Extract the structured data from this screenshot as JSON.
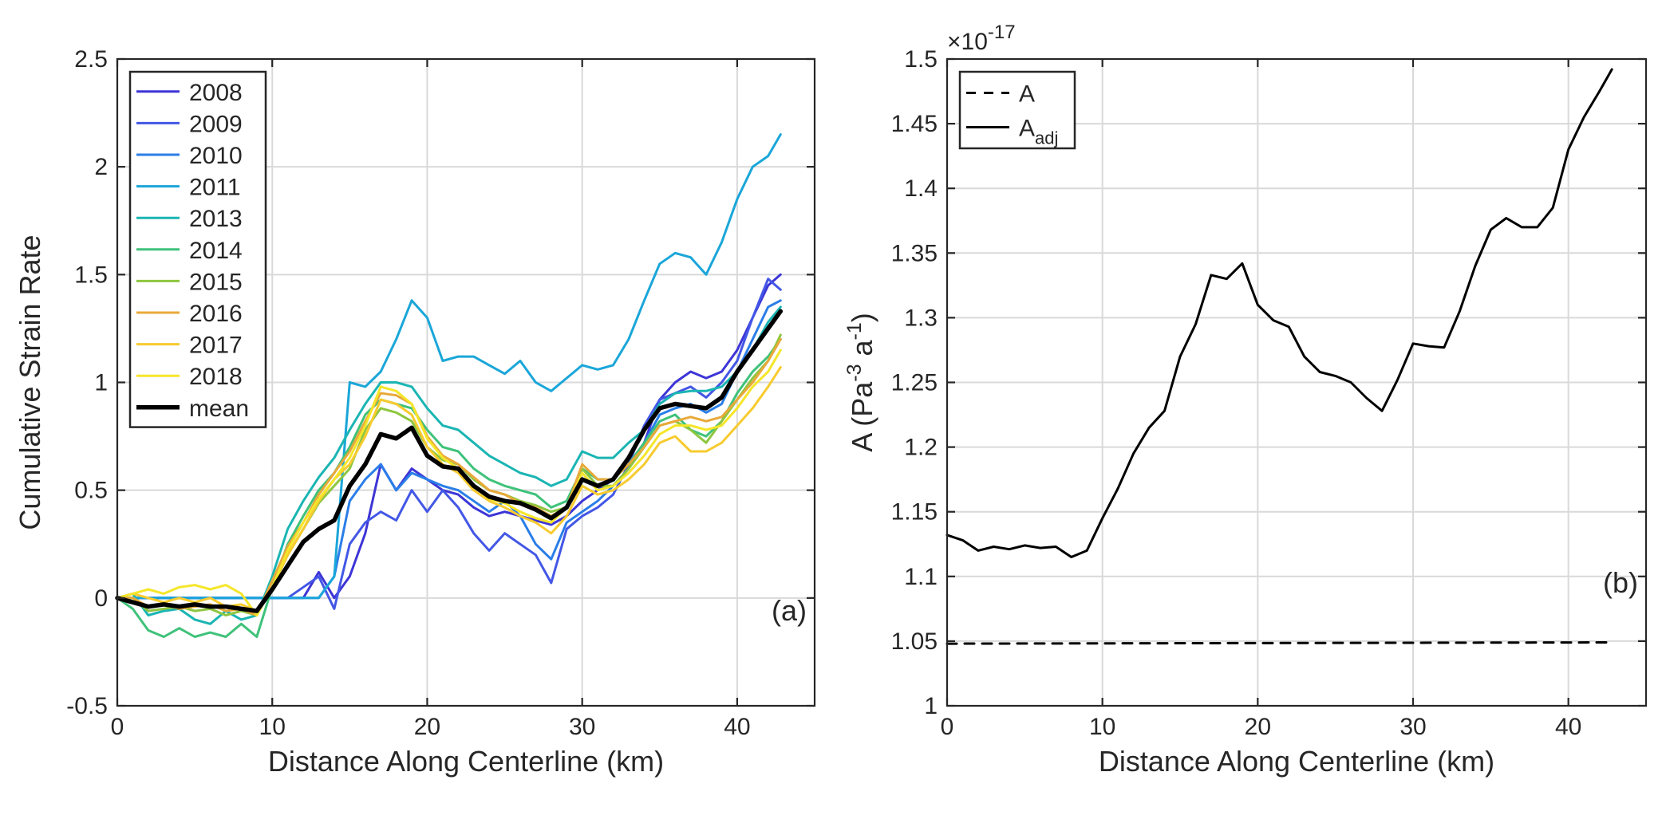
{
  "chart_data": [
    {
      "type": "line",
      "panel_label": "(a)",
      "xlabel": "Distance Along Centerline (km)",
      "ylabel": "Cumulative Strain Rate",
      "xlim": [
        0,
        45
      ],
      "ylim": [
        -0.5,
        2.5
      ],
      "xticks": [
        0,
        10,
        20,
        30,
        40
      ],
      "xtick_labels": [
        "0",
        "10",
        "20",
        "30",
        "40"
      ],
      "yticks": [
        -0.5,
        0,
        0.5,
        1,
        1.5,
        2,
        2.5
      ],
      "ytick_labels": [
        "-0.5",
        "0",
        "0.5",
        "1",
        "1.5",
        "2",
        "2.5"
      ],
      "grid": true,
      "legend_position": "top-left",
      "x": [
        0,
        1,
        2,
        3,
        4,
        5,
        6,
        7,
        8,
        9,
        10,
        11,
        12,
        13,
        14,
        15,
        16,
        17,
        18,
        19,
        20,
        21,
        22,
        23,
        24,
        25,
        26,
        27,
        28,
        29,
        30,
        31,
        32,
        33,
        34,
        35,
        36,
        37,
        38,
        39,
        40,
        41,
        42,
        42.8
      ],
      "series": [
        {
          "name": "2008",
          "color": "#3d35d6",
          "width": 3,
          "values": [
            0,
            0,
            0,
            0,
            0,
            0,
            0,
            0,
            0,
            0,
            0,
            0,
            0,
            0.12,
            0,
            0.1,
            0.3,
            0.62,
            0.5,
            0.6,
            0.55,
            0.5,
            0.48,
            0.42,
            0.38,
            0.4,
            0.38,
            0.36,
            0.34,
            0.38,
            0.45,
            0.5,
            0.55,
            0.62,
            0.72,
            0.92,
            1.0,
            1.05,
            1.02,
            1.05,
            1.15,
            1.3,
            1.45,
            1.5
          ]
        },
        {
          "name": "2009",
          "color": "#4357e6",
          "width": 3,
          "values": [
            0,
            0,
            0,
            0,
            0,
            0,
            0,
            0,
            0,
            0,
            0,
            0,
            0.05,
            0.1,
            -0.05,
            0.25,
            0.35,
            0.4,
            0.36,
            0.5,
            0.4,
            0.5,
            0.42,
            0.3,
            0.22,
            0.3,
            0.25,
            0.2,
            0.07,
            0.32,
            0.38,
            0.42,
            0.48,
            0.62,
            0.8,
            0.92,
            0.95,
            0.98,
            0.93,
            1.0,
            1.1,
            1.3,
            1.48,
            1.43
          ]
        },
        {
          "name": "2010",
          "color": "#2a7ee8",
          "width": 3,
          "values": [
            0,
            0,
            0,
            0,
            0,
            0,
            0,
            0,
            0,
            0,
            0,
            0,
            0,
            0,
            0.1,
            0.45,
            0.55,
            0.62,
            0.5,
            0.58,
            0.55,
            0.52,
            0.5,
            0.45,
            0.4,
            0.45,
            0.38,
            0.25,
            0.18,
            0.35,
            0.4,
            0.45,
            0.52,
            0.6,
            0.72,
            0.85,
            0.88,
            0.9,
            0.86,
            0.9,
            1.05,
            1.2,
            1.35,
            1.38
          ]
        },
        {
          "name": "2011",
          "color": "#1aa6d9",
          "width": 3,
          "values": [
            0,
            0,
            0,
            0,
            0,
            0,
            0,
            0,
            0,
            0,
            0,
            0,
            0,
            0,
            0.1,
            1.0,
            0.98,
            1.05,
            1.2,
            1.38,
            1.3,
            1.1,
            1.12,
            1.12,
            1.08,
            1.04,
            1.1,
            1.0,
            0.96,
            1.02,
            1.08,
            1.06,
            1.08,
            1.2,
            1.38,
            1.55,
            1.6,
            1.58,
            1.5,
            1.65,
            1.85,
            2.0,
            2.05,
            2.15
          ]
        },
        {
          "name": "2013",
          "color": "#1ab5b3",
          "width": 3,
          "values": [
            0,
            0.02,
            -0.08,
            -0.06,
            -0.05,
            -0.1,
            -0.12,
            -0.06,
            -0.1,
            -0.08,
            0.1,
            0.32,
            0.45,
            0.56,
            0.65,
            0.78,
            0.9,
            1.0,
            1.0,
            0.98,
            0.88,
            0.8,
            0.78,
            0.72,
            0.66,
            0.62,
            0.58,
            0.56,
            0.52,
            0.55,
            0.68,
            0.65,
            0.65,
            0.72,
            0.78,
            0.9,
            0.95,
            0.96,
            0.96,
            0.98,
            1.05,
            1.15,
            1.28,
            1.35
          ]
        },
        {
          "name": "2014",
          "color": "#3fc27a",
          "width": 3,
          "values": [
            0,
            -0.05,
            -0.15,
            -0.18,
            -0.14,
            -0.18,
            -0.16,
            -0.18,
            -0.12,
            -0.18,
            0.05,
            0.25,
            0.38,
            0.5,
            0.58,
            0.7,
            0.85,
            0.92,
            0.9,
            0.88,
            0.78,
            0.7,
            0.68,
            0.6,
            0.55,
            0.52,
            0.5,
            0.48,
            0.42,
            0.45,
            0.6,
            0.55,
            0.55,
            0.62,
            0.72,
            0.82,
            0.85,
            0.78,
            0.75,
            0.82,
            0.95,
            1.05,
            1.12,
            1.2
          ]
        },
        {
          "name": "2015",
          "color": "#8ec63f",
          "width": 3,
          "values": [
            0,
            0,
            -0.06,
            -0.05,
            -0.04,
            -0.06,
            -0.05,
            -0.08,
            -0.06,
            -0.08,
            0.05,
            0.2,
            0.32,
            0.44,
            0.52,
            0.6,
            0.78,
            0.88,
            0.86,
            0.82,
            0.7,
            0.64,
            0.62,
            0.55,
            0.5,
            0.48,
            0.45,
            0.43,
            0.4,
            0.42,
            0.6,
            0.52,
            0.52,
            0.6,
            0.7,
            0.8,
            0.82,
            0.78,
            0.72,
            0.82,
            0.92,
            1.02,
            1.1,
            1.22
          ]
        },
        {
          "name": "2016",
          "color": "#e8a93a",
          "width": 3,
          "values": [
            0,
            0,
            -0.04,
            -0.03,
            -0.05,
            -0.04,
            -0.03,
            -0.06,
            -0.05,
            -0.08,
            0.08,
            0.24,
            0.35,
            0.48,
            0.58,
            0.68,
            0.82,
            0.95,
            0.94,
            0.9,
            0.75,
            0.66,
            0.62,
            0.56,
            0.5,
            0.48,
            0.44,
            0.42,
            0.38,
            0.42,
            0.62,
            0.55,
            0.55,
            0.62,
            0.7,
            0.8,
            0.82,
            0.84,
            0.82,
            0.84,
            0.92,
            1.0,
            1.1,
            1.2
          ]
        },
        {
          "name": "2017",
          "color": "#f7cb2e",
          "width": 3,
          "values": [
            0,
            0.02,
            0,
            -0.02,
            0,
            -0.02,
            0,
            -0.04,
            -0.03,
            -0.06,
            0.05,
            0.2,
            0.32,
            0.45,
            0.55,
            0.62,
            0.75,
            0.92,
            0.9,
            0.85,
            0.7,
            0.62,
            0.58,
            0.5,
            0.45,
            0.42,
            0.38,
            0.35,
            0.3,
            0.38,
            0.52,
            0.48,
            0.5,
            0.55,
            0.62,
            0.72,
            0.75,
            0.68,
            0.68,
            0.72,
            0.8,
            0.88,
            0.98,
            1.07
          ]
        },
        {
          "name": "2018",
          "color": "#f5e62a",
          "width": 3,
          "values": [
            0,
            0.02,
            0.04,
            0.02,
            0.05,
            0.06,
            0.04,
            0.06,
            0.02,
            -0.08,
            0.05,
            0.22,
            0.35,
            0.46,
            0.55,
            0.65,
            0.8,
            0.98,
            0.96,
            0.9,
            0.74,
            0.65,
            0.6,
            0.52,
            0.46,
            0.44,
            0.4,
            0.37,
            0.35,
            0.42,
            0.58,
            0.5,
            0.52,
            0.58,
            0.66,
            0.76,
            0.8,
            0.8,
            0.78,
            0.8,
            0.88,
            0.98,
            1.05,
            1.15
          ]
        },
        {
          "name": "mean",
          "color": "#000000",
          "width": 5.5,
          "values": [
            0,
            -0.02,
            -0.04,
            -0.03,
            -0.04,
            -0.03,
            -0.04,
            -0.04,
            -0.05,
            -0.06,
            0.04,
            0.15,
            0.26,
            0.32,
            0.36,
            0.52,
            0.62,
            0.76,
            0.74,
            0.79,
            0.66,
            0.61,
            0.6,
            0.52,
            0.47,
            0.45,
            0.44,
            0.41,
            0.37,
            0.42,
            0.55,
            0.52,
            0.55,
            0.65,
            0.78,
            0.88,
            0.9,
            0.89,
            0.88,
            0.93,
            1.05,
            1.15,
            1.25,
            1.33
          ]
        }
      ]
    },
    {
      "type": "line",
      "panel_label": "(b)",
      "xlabel": "Distance Along Centerline (km)",
      "ylabel": "A (Pa",
      "ylabel_sup1": "-3",
      "ylabel_mid": " a",
      "ylabel_sup2": "-1",
      "ylabel_end": ")",
      "exponent_label": "×10",
      "exponent_power": "-17",
      "xlim": [
        0,
        45
      ],
      "ylim": [
        1,
        1.5
      ],
      "xticks": [
        0,
        10,
        20,
        30,
        40
      ],
      "xtick_labels": [
        "0",
        "10",
        "20",
        "30",
        "40"
      ],
      "yticks": [
        1,
        1.05,
        1.1,
        1.15,
        1.2,
        1.25,
        1.3,
        1.35,
        1.4,
        1.45,
        1.5
      ],
      "ytick_labels": [
        "1",
        "1.05",
        "1.1",
        "1.15",
        "1.2",
        "1.25",
        "1.3",
        "1.35",
        "1.4",
        "1.45",
        "1.5"
      ],
      "grid": true,
      "legend_position": "top-left",
      "series": [
        {
          "name": "A",
          "legend_sub": "",
          "color": "#000000",
          "width": 3,
          "dash": "12,10",
          "x": [
            0,
            42.8
          ],
          "values": [
            1.048,
            1.049
          ]
        },
        {
          "name": "A",
          "legend_sub": "adj",
          "color": "#000000",
          "width": 3,
          "dash": "",
          "x": [
            0,
            1,
            2,
            3,
            4,
            5,
            6,
            7,
            8,
            9,
            10,
            11,
            12,
            13,
            14,
            15,
            16,
            17,
            18,
            19,
            20,
            21,
            22,
            23,
            24,
            25,
            26,
            27,
            28,
            29,
            30,
            31,
            32,
            33,
            34,
            35,
            36,
            37,
            38,
            39,
            40,
            41,
            42,
            42.8
          ],
          "values": [
            1.132,
            1.128,
            1.12,
            1.123,
            1.121,
            1.124,
            1.122,
            1.123,
            1.115,
            1.12,
            1.145,
            1.168,
            1.195,
            1.215,
            1.228,
            1.27,
            1.295,
            1.333,
            1.33,
            1.342,
            1.31,
            1.298,
            1.293,
            1.27,
            1.258,
            1.255,
            1.25,
            1.238,
            1.228,
            1.252,
            1.28,
            1.278,
            1.277,
            1.305,
            1.34,
            1.368,
            1.377,
            1.37,
            1.37,
            1.385,
            1.43,
            1.455,
            1.475,
            1.492
          ]
        }
      ]
    }
  ]
}
